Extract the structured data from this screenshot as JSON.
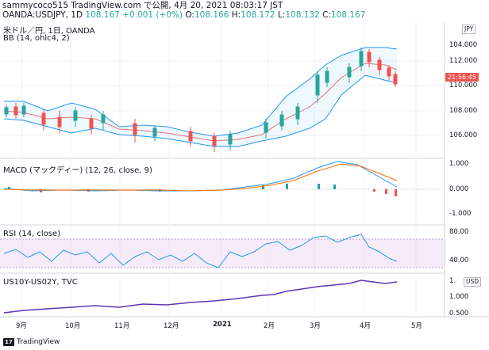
{
  "header": {
    "line1": "sammycoco515 TradingView.com で公開, 4月 20, 2021 08:03:17 JST",
    "symbol_prefix": "OANDA:USDJPY, 1D",
    "o_label": "108.167",
    "change": "+0.001 (+0%)",
    "o_key": " O:",
    "o_val": "108.166",
    "h_key": " H:",
    "h_val": "108.172",
    "l_key": " L:",
    "l_val": "108.132",
    "c_key": " C:",
    "c_val": "108.167"
  },
  "main_pane": {
    "title": "米ドル／円, 1日, OANDA",
    "indicator": "BB (14, ohlc4, 2)",
    "currency_tag": "JPY",
    "price_tag": "21:56:45",
    "y_ticks": [
      "112.000",
      "110.000",
      "108.000",
      "106.000",
      "104.000"
    ]
  },
  "macd_pane": {
    "title": "MACD (マックディー) (12, 26, close, 9)",
    "y_ticks": [
      "1.000",
      "0.000",
      "-1.000"
    ]
  },
  "rsi_pane": {
    "title": "RSI (14, close)",
    "y_ticks": [
      "80.00",
      "40.00"
    ]
  },
  "spread_pane": {
    "title": "US10Y-US02Y, TVC",
    "currency_tag": "USD",
    "y_ticks": [
      "1.",
      "1.000",
      "0.500"
    ]
  },
  "x_axis": [
    "9月",
    "10月",
    "11月",
    "12月",
    "2021",
    "2月",
    "3月",
    "4月",
    "5月"
  ],
  "footer": {
    "brand": "TradingView",
    "logo_text": "17"
  },
  "colors": {
    "up": "#26a69a",
    "down": "#ef5350",
    "bb_band": "#2196f3",
    "bb_basis": "#e57373",
    "macd_line": "#2196f3",
    "signal_line": "#ff6d00",
    "rsi_line": "#2196f3",
    "rsi_band": "#e1bee7",
    "spread_line": "#5e35b1"
  }
}
